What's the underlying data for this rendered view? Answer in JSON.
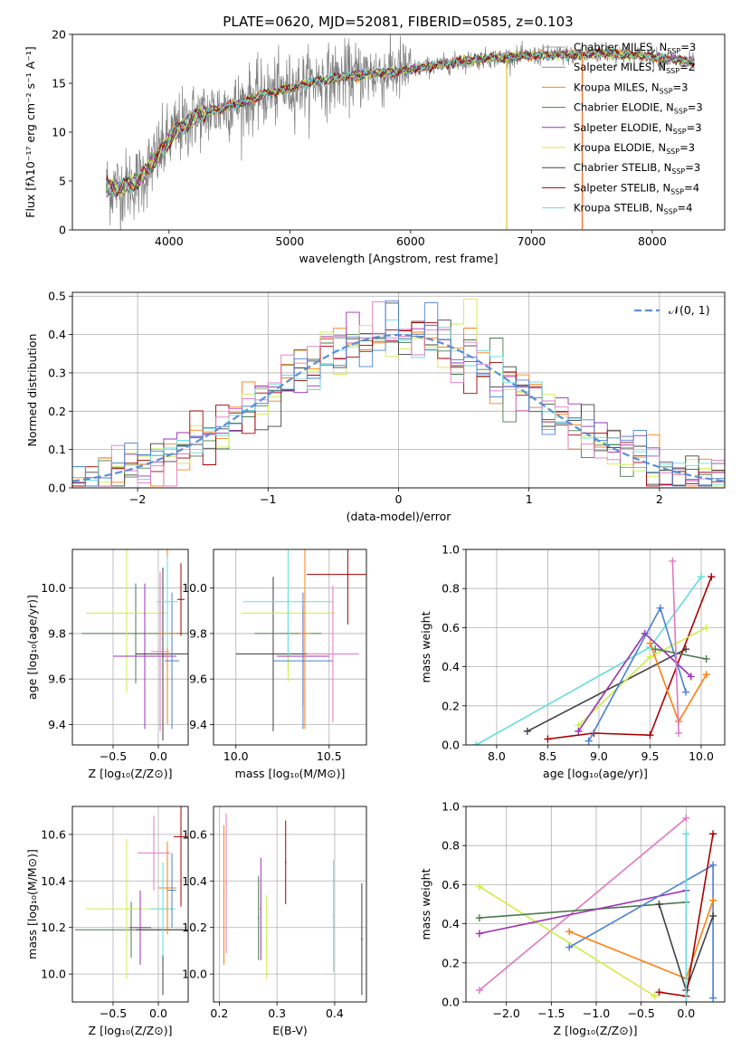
{
  "figure_title": "PLATE=0620, MJD=52081, FIBERID=0585, z=0.103",
  "model_colors": [
    "#808080",
    "#a0a0a0",
    "#ff7f0e",
    "#4c7a4c",
    "#9b30b0",
    "#ccee44",
    "#404040",
    "#aa0000",
    "#66dddd",
    "#e377c2",
    "#4a7fd4"
  ],
  "chart_data": [
    {
      "id": "spectrum",
      "type": "line",
      "title": "PLATE=0620, MJD=52081, FIBERID=0585, z=0.103",
      "xlabel": "wavelength [Angstrom, rest frame]",
      "ylabel": "Flux [fλ10⁻¹⁷ erg cm⁻² s⁻¹ A⁻¹]",
      "xlim": [
        3200,
        8600
      ],
      "ylim": [
        0,
        20
      ],
      "xticks": [
        "4000",
        "5000",
        "6000",
        "7000",
        "8000"
      ],
      "yticks": [
        "0",
        "5",
        "10",
        "15",
        "20"
      ],
      "legend_position": "top-right",
      "legend": [
        {
          "label": "Chabrier MILES, N",
          "sub": "SSP",
          "tail": "=3",
          "color": "#a0a0a0"
        },
        {
          "label": "Salpeter MILES, N",
          "sub": "SSP",
          "tail": "=2",
          "color": "#909090"
        },
        {
          "label": "Kroupa MILES, N",
          "sub": "SSP",
          "tail": "=3",
          "color": "#ff7f0e"
        },
        {
          "label": "Chabrier ELODIE, N",
          "sub": "SSP",
          "tail": "=3",
          "color": "#4c7a4c"
        },
        {
          "label": "Salpeter ELODIE, N",
          "sub": "SSP",
          "tail": "=3",
          "color": "#9b30b0"
        },
        {
          "label": "Kroupa ELODIE, N",
          "sub": "SSP",
          "tail": "=3",
          "color": "#ccee44"
        },
        {
          "label": "Chabrier STELIB, N",
          "sub": "SSP",
          "tail": "=3",
          "color": "#404040"
        },
        {
          "label": "Salpeter STELIB, N",
          "sub": "SSP",
          "tail": "=4",
          "color": "#aa0000"
        },
        {
          "label": "Kroupa STELIB, N",
          "sub": "SSP",
          "tail": "=4",
          "color": "#66dddd"
        }
      ],
      "continuum": {
        "x": [
          3480,
          3600,
          3750,
          3900,
          4050,
          4200,
          4400,
          4600,
          4800,
          5000,
          5200,
          5400,
          5600,
          5800,
          6000,
          6200,
          6400,
          6600,
          6800,
          7000,
          7200,
          7400,
          7600,
          7800,
          8000,
          8200,
          8350
        ],
        "y": [
          4.4,
          4.3,
          5.0,
          7.5,
          10.0,
          11.5,
          12.3,
          13.0,
          13.9,
          14.5,
          15.2,
          15.6,
          15.9,
          16.1,
          16.4,
          16.8,
          17.2,
          17.5,
          17.7,
          17.8,
          17.9,
          17.9,
          18.1,
          17.9,
          17.7,
          17.4,
          17.1
        ]
      }
    },
    {
      "id": "residuals",
      "type": "bar",
      "xlabel": "(data-model)/error",
      "ylabel": "Normed distribution",
      "xlim": [
        -2.5,
        2.5
      ],
      "ylim": [
        0,
        0.51
      ],
      "xticks": [
        "−2",
        "−1",
        "0",
        "1",
        "2"
      ],
      "yticks": [
        "0.0",
        "0.1",
        "0.2",
        "0.3",
        "0.4",
        "0.5"
      ],
      "legend_position": "top-right",
      "reference_label": "𝒩(0, 1)",
      "reference_color": "#5b8fd8",
      "bin_width": 0.1
    },
    {
      "id": "age-vs-Z",
      "type": "scatter",
      "xlabel": "Z [log₁₀(Z/Z⊙)]",
      "ylabel": "age  [log₁₀(age/yr)]",
      "xlim": [
        -0.95,
        0.33
      ],
      "ylim": [
        9.31,
        10.17
      ],
      "xticks": [
        "−0.5",
        "0.0"
      ],
      "yticks": [
        "9.4",
        "9.6",
        "9.8",
        "10.0"
      ],
      "points": [
        {
          "x": -0.25,
          "y": 9.8,
          "xerr": 0.6,
          "yerr": 0.22,
          "color": "#4c7a4c"
        },
        {
          "x": -0.35,
          "y": 9.89,
          "xerr": 0.45,
          "yerr": 0.35,
          "color": "#ccee44"
        },
        {
          "x": -0.15,
          "y": 9.7,
          "xerr": 0.35,
          "yerr": 0.32,
          "color": "#9b30b0"
        },
        {
          "x": 0.05,
          "y": 9.71,
          "xerr": 0.3,
          "yerr": 0.38,
          "color": "#404040"
        },
        {
          "x": 0.02,
          "y": 9.72,
          "xerr": 0.1,
          "yerr": 0.35,
          "color": "#e377c2"
        },
        {
          "x": 0.1,
          "y": 9.8,
          "xerr": 0.1,
          "yerr": 0.4,
          "color": "#ff7f0e"
        },
        {
          "x": 0.15,
          "y": 9.68,
          "xerr": 0.08,
          "yerr": 0.3,
          "color": "#4a7fd4"
        },
        {
          "x": 0.1,
          "y": 9.94,
          "xerr": 0.12,
          "yerr": 0.2,
          "color": "#66dddd"
        },
        {
          "x": 0.25,
          "y": 9.95,
          "xerr": 0.04,
          "yerr": 0.16,
          "color": "#aa0000"
        }
      ]
    },
    {
      "id": "age-vs-mass",
      "type": "scatter",
      "xlabel": "mass [log₁₀(M/M⊙)]",
      "ylabel": "",
      "xlim": [
        9.88,
        10.7
      ],
      "ylim": [
        9.31,
        10.17
      ],
      "xticks": [
        "10.0",
        "10.5"
      ],
      "yticks": [
        "9.4",
        "9.6",
        "9.8",
        "10.0"
      ],
      "points": [
        {
          "x": 10.2,
          "y": 9.71,
          "xerr": 0.2,
          "yerr": 0.34,
          "color": "#404040"
        },
        {
          "x": 10.28,
          "y": 9.8,
          "xerr": 0.18,
          "yerr": 0.16,
          "color": "#4c7a4c"
        },
        {
          "x": 10.28,
          "y": 9.89,
          "xerr": 0.25,
          "yerr": 0.3,
          "color": "#ccee44"
        },
        {
          "x": 10.28,
          "y": 9.94,
          "xerr": 0.24,
          "yerr": 0.24,
          "color": "#66dddd"
        },
        {
          "x": 10.36,
          "y": 9.7,
          "xerr": 0.14,
          "yerr": 0.22,
          "color": "#9b30b0"
        },
        {
          "x": 10.36,
          "y": 9.68,
          "xerr": 0.16,
          "yerr": 0.3,
          "color": "#4a7fd4"
        },
        {
          "x": 10.37,
          "y": 9.8,
          "xerr": 0.03,
          "yerr": 0.42,
          "color": "#ff7f0e"
        },
        {
          "x": 10.52,
          "y": 9.71,
          "xerr": 0.14,
          "yerr": 0.3,
          "color": "#e377c2"
        },
        {
          "x": 10.6,
          "y": 10.06,
          "xerr": 0.22,
          "yerr": 0.22,
          "color": "#aa0000"
        }
      ]
    },
    {
      "id": "weight-vs-age",
      "type": "line",
      "xlabel": "age  [log₁₀(age/yr)]",
      "ylabel": "mass weight",
      "xlim": [
        7.7,
        10.23
      ],
      "ylim": [
        0,
        1
      ],
      "xticks": [
        "8.0",
        "8.5",
        "9.0",
        "9.5",
        "10.0"
      ],
      "yticks": [
        "0.0",
        "0.2",
        "0.4",
        "0.6",
        "0.8",
        "1.0"
      ],
      "series": [
        {
          "color": "#404040",
          "x": [
            8.3,
            9.85
          ],
          "y": [
            0.07,
            0.49
          ]
        },
        {
          "color": "#aa0000",
          "x": [
            8.5,
            8.95,
            9.5,
            10.1
          ],
          "y": [
            0.03,
            0.06,
            0.05,
            0.86
          ]
        },
        {
          "color": "#66dddd",
          "x": [
            7.8,
            9.5,
            10.0
          ],
          "y": [
            0.0,
            0.5,
            0.86
          ]
        },
        {
          "color": "#ccee44",
          "x": [
            8.8,
            9.5,
            10.05
          ],
          "y": [
            0.1,
            0.45,
            0.6
          ]
        },
        {
          "color": "#9b30b0",
          "x": [
            8.8,
            9.45,
            9.9
          ],
          "y": [
            0.07,
            0.57,
            0.35
          ]
        },
        {
          "color": "#4a7fd4",
          "x": [
            8.9,
            9.6,
            9.85
          ],
          "y": [
            0.02,
            0.7,
            0.27
          ]
        },
        {
          "color": "#ff7f0e",
          "x": [
            9.5,
            9.78,
            10.05
          ],
          "y": [
            0.52,
            0.12,
            0.36
          ]
        },
        {
          "color": "#4c7a4c",
          "x": [
            9.55,
            10.05
          ],
          "y": [
            0.49,
            0.44
          ]
        },
        {
          "color": "#e377c2",
          "x": [
            9.72,
            9.78
          ],
          "y": [
            0.94,
            0.06
          ]
        }
      ]
    },
    {
      "id": "mass-vs-Z",
      "type": "scatter",
      "xlabel": "Z [log₁₀(Z/Z⊙)]",
      "ylabel": "mass [log₁₀(M/M⊙)]",
      "xlim": [
        -0.95,
        0.33
      ],
      "ylim": [
        9.88,
        10.72
      ],
      "xticks": [
        "−0.5",
        "0.0"
      ],
      "yticks": [
        "10.0",
        "10.2",
        "10.4",
        "10.6"
      ],
      "points": [
        {
          "x": -0.3,
          "y": 10.19,
          "xerr": 0.62,
          "yerr": 0.12,
          "color": "#4c7a4c"
        },
        {
          "x": -0.35,
          "y": 10.28,
          "xerr": 0.45,
          "yerr": 0.3,
          "color": "#ccee44"
        },
        {
          "x": -0.2,
          "y": 10.2,
          "xerr": 0.12,
          "yerr": 0.16,
          "color": "#9b30b0"
        },
        {
          "x": 0.05,
          "y": 10.19,
          "xerr": 0.3,
          "yerr": 0.28,
          "color": "#404040"
        },
        {
          "x": -0.05,
          "y": 10.52,
          "xerr": 0.18,
          "yerr": 0.16,
          "color": "#e377c2"
        },
        {
          "x": 0.1,
          "y": 10.37,
          "xerr": 0.1,
          "yerr": 0.2,
          "color": "#ff7f0e"
        },
        {
          "x": 0.05,
          "y": 10.28,
          "xerr": 0.14,
          "yerr": 0.2,
          "color": "#66dddd"
        },
        {
          "x": 0.15,
          "y": 10.36,
          "xerr": 0.05,
          "yerr": 0.16,
          "color": "#4a7fd4"
        },
        {
          "x": 0.25,
          "y": 10.59,
          "xerr": 0.08,
          "yerr": 0.3,
          "color": "#aa0000"
        }
      ]
    },
    {
      "id": "mass-vs-ebv",
      "type": "scatter",
      "xlabel": "E(B-V)",
      "ylabel": "",
      "xlim": [
        0.19,
        0.455
      ],
      "ylim": [
        9.88,
        10.72
      ],
      "xticks": [
        "0.2",
        "0.3",
        "0.4"
      ],
      "yticks": [
        "10.0",
        "10.2",
        "10.4",
        "10.6"
      ],
      "points": [
        {
          "x": 0.208,
          "y": 10.34,
          "yerr": 0.3,
          "color": "#ff7f0e"
        },
        {
          "x": 0.212,
          "y": 10.39,
          "yerr": 0.3,
          "color": "#e377c2"
        },
        {
          "x": 0.268,
          "y": 10.24,
          "yerr": 0.18,
          "color": "#4c7a4c"
        },
        {
          "x": 0.272,
          "y": 10.28,
          "yerr": 0.22,
          "color": "#9b30b0"
        },
        {
          "x": 0.282,
          "y": 10.16,
          "yerr": 0.18,
          "color": "#ccee44"
        },
        {
          "x": 0.315,
          "y": 10.48,
          "yerr": 0.18,
          "color": "#aa0000"
        },
        {
          "x": 0.398,
          "y": 10.25,
          "yerr": 0.24,
          "color": "#66dddd"
        },
        {
          "x": 0.447,
          "y": 10.15,
          "yerr": 0.24,
          "color": "#404040"
        }
      ]
    },
    {
      "id": "weight-vs-Z",
      "type": "line",
      "xlabel": "Z [log₁₀(Z/Z⊙)]",
      "ylabel": "mass weight",
      "xlim": [
        -2.45,
        0.43
      ],
      "ylim": [
        0,
        1
      ],
      "xticks": [
        "−2.0",
        "−1.5",
        "−1.0",
        "−0.5",
        "0.0"
      ],
      "yticks": [
        "0.0",
        "0.2",
        "0.4",
        "0.6",
        "0.8",
        "1.0"
      ],
      "series": [
        {
          "color": "#e377c2",
          "x": [
            -2.3,
            0.0
          ],
          "y": [
            0.06,
            0.94
          ]
        },
        {
          "color": "#ccee44",
          "x": [
            -2.3,
            -0.35
          ],
          "y": [
            0.59,
            0.03
          ]
        },
        {
          "color": "#4c7a4c",
          "x": [
            -2.3,
            0.0
          ],
          "y": [
            0.43,
            0.51
          ]
        },
        {
          "color": "#9b30b0",
          "x": [
            -2.3,
            0.0
          ],
          "y": [
            0.35,
            0.57
          ]
        },
        {
          "color": "#4a7fd4",
          "x": [
            -1.3,
            0.3,
            0.3
          ],
          "y": [
            0.28,
            0.7,
            0.02
          ]
        },
        {
          "color": "#ff7f0e",
          "x": [
            -1.3,
            0.0,
            0.3
          ],
          "y": [
            0.36,
            0.12,
            0.52
          ]
        },
        {
          "color": "#404040",
          "x": [
            -0.3,
            0.0,
            0.3
          ],
          "y": [
            0.5,
            0.06,
            0.44
          ]
        },
        {
          "color": "#aa0000",
          "x": [
            -0.3,
            0.0,
            0.3
          ],
          "y": [
            0.05,
            0.03,
            0.86
          ]
        },
        {
          "color": "#66dddd",
          "x": [
            0.0,
            0.0
          ],
          "y": [
            0.86,
            0.0
          ]
        }
      ]
    }
  ]
}
